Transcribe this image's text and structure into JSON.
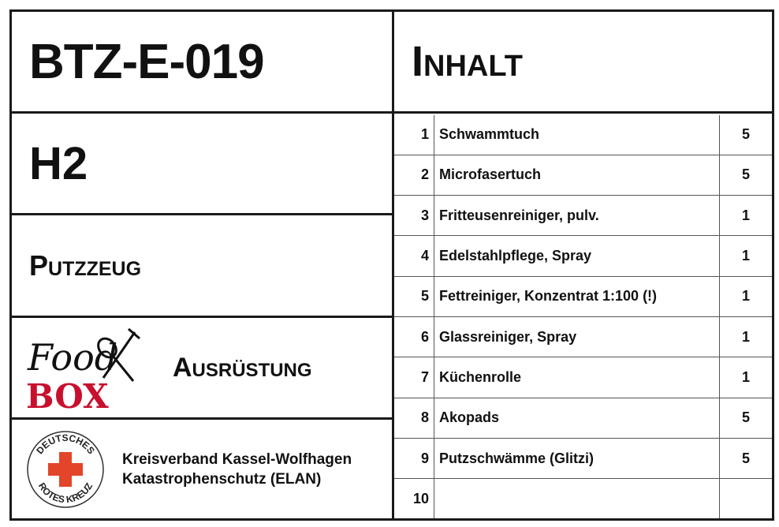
{
  "box_id": "BTZ-E-019",
  "location": "H2",
  "category": "Putzzeug",
  "type_logo": {
    "top": "Food",
    "bottom": "BOX",
    "accent": "#c8102e"
  },
  "type_label": "Ausrüstung",
  "org_logo": {
    "top": "DEUTSCHES",
    "bottom": "ROTES KREUZ",
    "accent": "#e2452a"
  },
  "org_line1": "Kreisverband Kassel-Wolfhagen",
  "org_line2": "Katastrophenschutz (ELAN)",
  "contents_title": "Inhalt",
  "items": [
    {
      "no": "1",
      "name": "Schwammtuch",
      "qty": "5"
    },
    {
      "no": "2",
      "name": "Microfasertuch",
      "qty": "5"
    },
    {
      "no": "3",
      "name": "Fritteusenreiniger, pulv.",
      "qty": "1"
    },
    {
      "no": "4",
      "name": "Edelstahlpflege, Spray",
      "qty": "1"
    },
    {
      "no": "5",
      "name": "Fettreiniger, Konzentrat 1:100 (!)",
      "qty": "1"
    },
    {
      "no": "6",
      "name": "Glassreiniger, Spray",
      "qty": "1"
    },
    {
      "no": "7",
      "name": "Küchenrolle",
      "qty": "1"
    },
    {
      "no": "8",
      "name": "Akopads",
      "qty": "5"
    },
    {
      "no": "9",
      "name": "Putzschwämme (Glitzi)",
      "qty": "5"
    },
    {
      "no": "10",
      "name": "",
      "qty": ""
    }
  ]
}
